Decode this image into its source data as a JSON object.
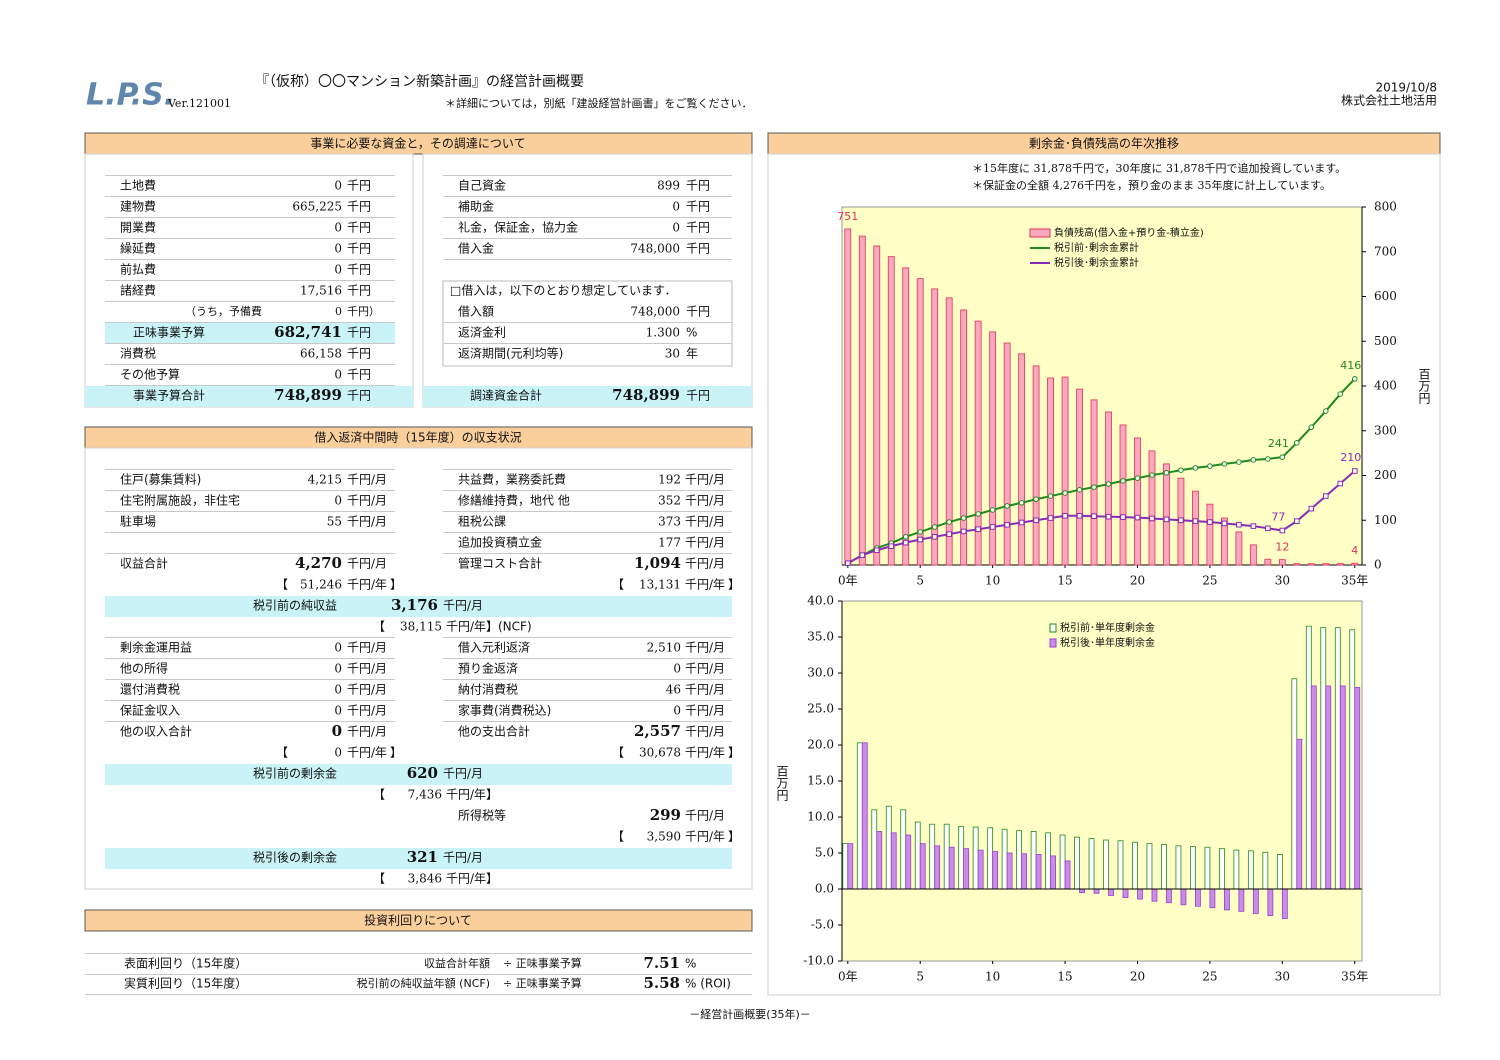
{
  "header": {
    "logo": "L.P.S.",
    "version": "Ver.121001",
    "title": "『（仮称）〇〇マンション新築計画』の経営計画概要",
    "note": "＊詳細については，別紙「建設経営計画書」をご覧ください．",
    "date": "2019/10/8",
    "company": "株式会社土地活用"
  },
  "funding": {
    "heading": "事業に必要な資金と，その調達について",
    "costs": [
      {
        "label": "土地費",
        "value": "0",
        "unit": "千円"
      },
      {
        "label": "建物費",
        "value": "665,225",
        "unit": "千円"
      },
      {
        "label": "開業費",
        "value": "0",
        "unit": "千円"
      },
      {
        "label": "繰延費",
        "value": "0",
        "unit": "千円"
      },
      {
        "label": "前払費",
        "value": "0",
        "unit": "千円"
      },
      {
        "label": "諸経費",
        "value": "17,516",
        "unit": "千円"
      },
      {
        "label": "（うち，予備費",
        "value": "0",
        "unit": "千円）"
      },
      {
        "label": "正味事業予算",
        "value": "682,741",
        "unit": "千円"
      },
      {
        "label": "消費税",
        "value": "66,158",
        "unit": "千円"
      },
      {
        "label": "その他予算",
        "value": "0",
        "unit": "千円"
      },
      {
        "label": "事業予算合計",
        "value": "748,899",
        "unit": "千円"
      }
    ],
    "sources": [
      {
        "label": "自己資金",
        "value": "899",
        "unit": "千円"
      },
      {
        "label": "補助金",
        "value": "0",
        "unit": "千円"
      },
      {
        "label": "礼金，保証金，協力金",
        "value": "0",
        "unit": "千円"
      },
      {
        "label": "借入金",
        "value": "748,000",
        "unit": "千円"
      }
    ],
    "loan_note": "□借入は，以下のとおり想定しています．",
    "loan": [
      {
        "label": "借入額",
        "value": "748,000",
        "unit": "千円"
      },
      {
        "label": "返済金利",
        "value": "1.300",
        "unit": "%"
      },
      {
        "label": "返済期間(元利均等)",
        "value": "30",
        "unit": "年"
      }
    ],
    "sources_total": {
      "label": "調達資金合計",
      "value": "748,899",
      "unit": "千円"
    }
  },
  "midterm": {
    "heading": "借入返済中間時（15年度）の収支状況",
    "income": [
      {
        "label": "住戸(募集賃料)",
        "value": "4,215",
        "unit": "千円/月"
      },
      {
        "label": "住宅附属施設，非住宅",
        "value": "0",
        "unit": "千円/月"
      },
      {
        "label": "駐車場",
        "value": "55",
        "unit": "千円/月"
      }
    ],
    "income_total": {
      "label": "収益合計",
      "value": "4,270",
      "unit": "千円/月"
    },
    "income_annual": {
      "open": "【",
      "value": "51,246",
      "unit": "千円/年",
      "close": "】"
    },
    "costs": [
      {
        "label": "共益費，業務委託費",
        "value": "192",
        "unit": "千円/月"
      },
      {
        "label": "修繕維持費，地代 他",
        "value": "352",
        "unit": "千円/月"
      },
      {
        "label": "租税公課",
        "value": "373",
        "unit": "千円/月"
      },
      {
        "label": "追加投資積立金",
        "value": "177",
        "unit": "千円/月"
      }
    ],
    "costs_total": {
      "label": "管理コスト合計",
      "value": "1,094",
      "unit": "千円/月"
    },
    "costs_annual": {
      "open": "【",
      "value": "13,131",
      "unit": "千円/年",
      "close": "】"
    },
    "noi": {
      "label": "税引前の純収益",
      "value": "3,176",
      "unit": "千円/月"
    },
    "noi_annual": {
      "open": "【",
      "value": "38,115",
      "unit": "千円/年",
      "close": "】(NCF)"
    },
    "other_income": [
      {
        "label": "剰余金運用益",
        "value": "0",
        "unit": "千円/月"
      },
      {
        "label": "他の所得",
        "value": "0",
        "unit": "千円/月"
      },
      {
        "label": "還付消費税",
        "value": "0",
        "unit": "千円/月"
      },
      {
        "label": "保証金収入",
        "value": "0",
        "unit": "千円/月"
      }
    ],
    "other_income_total": {
      "label": "他の収入合計",
      "value": "0",
      "unit": "千円/月"
    },
    "other_income_annual": {
      "open": "【",
      "value": "0",
      "unit": "千円/年",
      "close": "】"
    },
    "other_costs": [
      {
        "label": "借入元利返済",
        "value": "2,510",
        "unit": "千円/月"
      },
      {
        "label": "預り金返済",
        "value": "0",
        "unit": "千円/月"
      },
      {
        "label": "納付消費税",
        "value": "46",
        "unit": "千円/月"
      },
      {
        "label": "家事費(消費税込)",
        "value": "0",
        "unit": "千円/月"
      }
    ],
    "other_costs_total": {
      "label": "他の支出合計",
      "value": "2,557",
      "unit": "千円/月"
    },
    "other_costs_annual": {
      "open": "【",
      "value": "30,678",
      "unit": "千円/年",
      "close": "】"
    },
    "pretax": {
      "label": "税引前の剰余金",
      "value": "620",
      "unit": "千円/月"
    },
    "pretax_annual": {
      "open": "【",
      "value": "7,436",
      "unit": "千円/年",
      "close": "】"
    },
    "tax": {
      "label": "所得税等",
      "value": "299",
      "unit": "千円/月"
    },
    "tax_annual": {
      "open": "【",
      "value": "3,590",
      "unit": "千円/年",
      "close": "】"
    },
    "aftertax": {
      "label": "税引後の剰余金",
      "value": "321",
      "unit": "千円/月"
    },
    "aftertax_annual": {
      "open": "【",
      "value": "3,846",
      "unit": "千円/年",
      "close": "】"
    }
  },
  "yield": {
    "heading": "投資利回りについて",
    "rows": [
      {
        "label": "表面利回り（15年度）",
        "formula": "収益合計年額",
        "op": "÷ 正味事業予算",
        "value": "7.51",
        "unit": "%"
      },
      {
        "label": "実質利回り（15年度）",
        "formula": "税引前の純収益年額 (NCF)",
        "op": "÷ 正味事業予算",
        "value": "5.58",
        "unit": "% (ROI)"
      }
    ]
  },
  "footer": "－経営計画概要(35年)－",
  "trend": {
    "heading": "剰余金･負債残高の年次推移",
    "notes": [
      "＊15年度に 31,878千円で，30年度に 31,878千円で追加投資しています。",
      "＊保証金の全額 4,276千円を，預り金のまま 35年度に計上しています。"
    ]
  },
  "chart_data": [
    {
      "type": "combo",
      "y_label": "百万円",
      "legend": "top",
      "x": [
        0,
        1,
        2,
        3,
        4,
        5,
        6,
        7,
        8,
        9,
        10,
        11,
        12,
        13,
        14,
        15,
        16,
        17,
        18,
        19,
        20,
        21,
        22,
        23,
        24,
        25,
        26,
        27,
        28,
        29,
        30,
        31,
        32,
        33,
        34,
        35
      ],
      "xlim": [
        -0.4,
        35.5
      ],
      "xticks": [
        {
          "value": 0,
          "label": "0年"
        },
        5,
        10,
        15,
        20,
        25,
        30,
        {
          "value": 35,
          "label": "35年"
        }
      ],
      "ylim": [
        0,
        800
      ],
      "yticks": [
        0,
        100,
        200,
        300,
        400,
        500,
        600,
        700,
        800
      ],
      "series": [
        {
          "name": "負債残高(借入金+預り金-積立金)",
          "kind": "bar",
          "color": "#e3305a",
          "values": [
            751,
            735,
            713,
            689,
            664,
            640,
            617,
            597,
            570,
            545,
            521,
            496,
            472,
            445,
            418,
            420,
            393,
            369,
            342,
            313,
            284,
            255,
            226,
            194,
            165,
            136,
            105,
            74,
            45,
            13,
            12,
            3,
            3,
            3,
            3,
            4
          ]
        },
        {
          "name": "税引前･剰余金累計",
          "kind": "line",
          "color": "#1e8a1e",
          "values": [
            4,
            22,
            38,
            49,
            63,
            74,
            85,
            96,
            105,
            114,
            123,
            132,
            139,
            147,
            154,
            161,
            168,
            174,
            181,
            188,
            194,
            201,
            206,
            212,
            217,
            221,
            226,
            230,
            235,
            237,
            241,
            273,
            308,
            344,
            382,
            416
          ]
        },
        {
          "name": "税引後･剰余金累計",
          "kind": "line",
          "color": "#8a2bb8",
          "values": [
            4,
            22,
            33,
            42,
            50,
            57,
            63,
            69,
            75,
            80,
            85,
            90,
            95,
            100,
            105,
            110,
            110,
            109,
            108,
            107,
            106,
            104,
            102,
            100,
            98,
            96,
            93,
            90,
            87,
            82,
            77,
            98,
            126,
            154,
            182,
            210
          ]
        }
      ]
    },
    {
      "type": "bar",
      "y_label": "百万円",
      "legend": "top",
      "x": [
        0,
        1,
        2,
        3,
        4,
        5,
        6,
        7,
        8,
        9,
        10,
        11,
        12,
        13,
        14,
        15,
        16,
        17,
        18,
        19,
        20,
        21,
        22,
        23,
        24,
        25,
        26,
        27,
        28,
        29,
        30,
        31,
        32,
        33,
        34,
        35
      ],
      "xlim": [
        -0.4,
        35.5
      ],
      "xticks": [
        {
          "value": 0,
          "label": "0年"
        },
        5,
        10,
        15,
        20,
        25,
        30,
        {
          "value": 35,
          "label": "35年"
        }
      ],
      "ylim": [
        -10,
        40
      ],
      "yticks": [
        {
          "value": -10,
          "label": "-10.0"
        },
        {
          "value": -5,
          "label": "-5.0"
        },
        {
          "value": 0,
          "label": "0.0"
        },
        {
          "value": 5,
          "label": "5.0"
        },
        {
          "value": 10,
          "label": "10.0"
        },
        {
          "value": 15,
          "label": "15.0"
        },
        {
          "value": 20,
          "label": "20.0"
        },
        {
          "value": 25,
          "label": "25.0"
        },
        {
          "value": 30,
          "label": "30.0"
        },
        {
          "value": 35,
          "label": "35.0"
        },
        {
          "value": 40,
          "label": "40.0"
        }
      ],
      "series": [
        {
          "name": "税引前･単年度剰余金",
          "color": "#1e8a1e",
          "values": [
            6.3,
            20.3,
            11,
            11.5,
            11,
            9.3,
            9,
            9,
            8.7,
            8.6,
            8.5,
            8.3,
            8.1,
            8,
            7.8,
            7.5,
            7.2,
            7,
            6.8,
            6.7,
            6.5,
            6.3,
            6.2,
            6,
            5.9,
            5.8,
            5.6,
            5.4,
            5.3,
            5.1,
            4.8,
            29.2,
            36.5,
            36.3,
            36.3,
            36
          ]
        },
        {
          "name": "税引後･単年度剰余金",
          "color": "#9a3fd0",
          "values": [
            6.3,
            20.3,
            8,
            7.8,
            7.5,
            6.3,
            6,
            5.8,
            5.6,
            5.4,
            5.2,
            5,
            4.9,
            4.8,
            4.6,
            3.9,
            -0.5,
            -0.6,
            -0.9,
            -1.2,
            -1.4,
            -1.7,
            -1.9,
            -2.2,
            -2.4,
            -2.6,
            -2.9,
            -3.1,
            -3.4,
            -3.7,
            -4.1,
            20.8,
            28.2,
            28.2,
            28.2,
            28
          ]
        }
      ]
    }
  ]
}
